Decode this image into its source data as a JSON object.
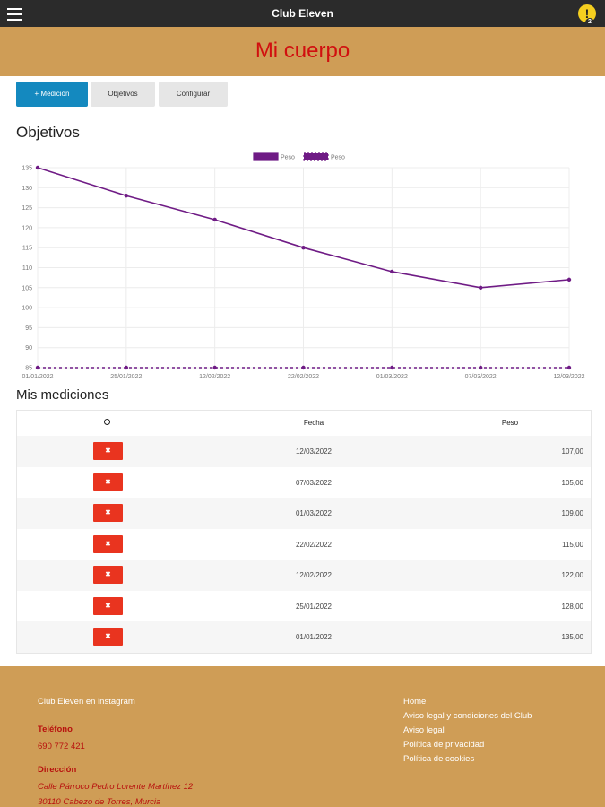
{
  "app": {
    "title": "Club Eleven",
    "alert_count": "2"
  },
  "banner": {
    "title": "Mi cuerpo"
  },
  "tabs": [
    {
      "label": "+ Medición",
      "active": true
    },
    {
      "label": "Objetivos",
      "active": false
    },
    {
      "label": "Configurar",
      "active": false
    }
  ],
  "sections": {
    "objetivos": "Objetivos",
    "mediciones": "Mis mediciones"
  },
  "colors": {
    "accent": "#1489bf",
    "banner": "#cf9d56",
    "title_red": "#d10f0f",
    "delete": "#e9341f",
    "series": "#6f1b85"
  },
  "chart_data": {
    "type": "line",
    "x": [
      "01/01/2022",
      "25/01/2022",
      "12/02/2022",
      "22/02/2022",
      "01/03/2022",
      "07/03/2022",
      "12/03/2022"
    ],
    "series": [
      {
        "name": "Peso",
        "values": [
          135,
          128,
          122,
          115,
          109,
          105,
          107
        ]
      },
      {
        "name": "Peso",
        "values": [
          85,
          85,
          85,
          85,
          85,
          85,
          85
        ],
        "dashed": true
      }
    ],
    "ylim": [
      85,
      135
    ],
    "yticks": [
      85,
      90,
      95,
      100,
      105,
      110,
      115,
      120,
      125,
      130,
      135
    ],
    "grid": true,
    "legend": "top-center"
  },
  "table": {
    "headers": {
      "action": "⚙",
      "fecha": "Fecha",
      "peso": "Peso"
    },
    "delete_label": "✖",
    "rows": [
      {
        "fecha": "12/03/2022",
        "peso": "107,00"
      },
      {
        "fecha": "07/03/2022",
        "peso": "105,00"
      },
      {
        "fecha": "01/03/2022",
        "peso": "109,00"
      },
      {
        "fecha": "22/02/2022",
        "peso": "115,00"
      },
      {
        "fecha": "12/02/2022",
        "peso": "122,00"
      },
      {
        "fecha": "25/01/2022",
        "peso": "128,00"
      },
      {
        "fecha": "01/01/2022",
        "peso": "135,00"
      }
    ]
  },
  "footer": {
    "instagram": "Club Eleven en instagram",
    "phone_label": "Teléfono",
    "phone": "690 772 421",
    "address_label": "Dirección",
    "address_line1": "Calle Párroco Pedro Lorente Martínez 12",
    "address_line2": "30110 Cabezo de Torres, Murcia",
    "links": [
      "Home",
      "Aviso legal y condiciones del Club",
      "Aviso legal",
      "Política de privacidad",
      "Política de cookies"
    ]
  }
}
